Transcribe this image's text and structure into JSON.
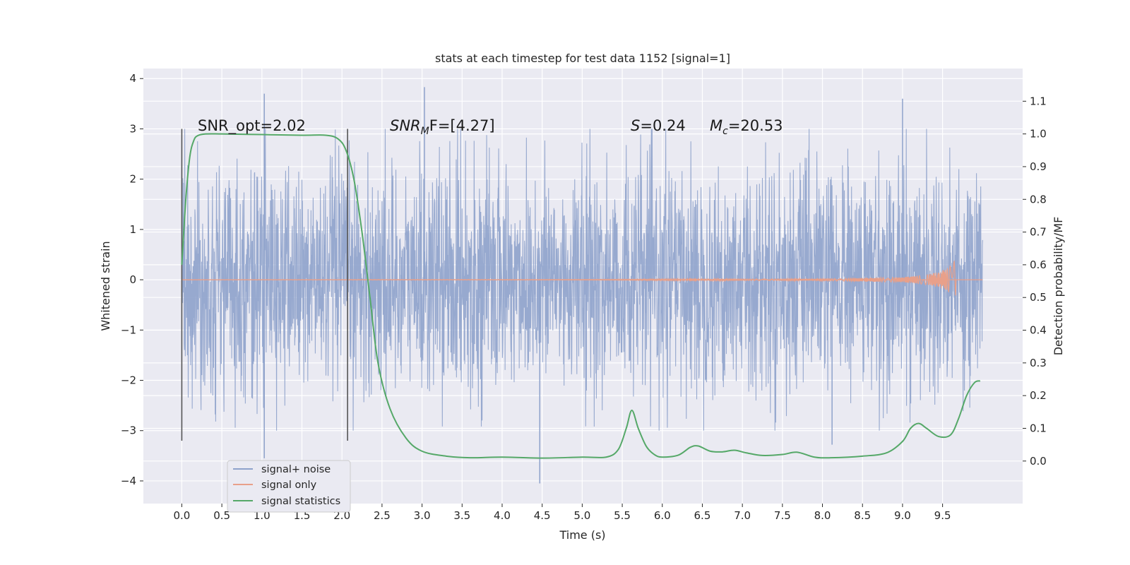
{
  "chart_data": {
    "type": "line",
    "title": "stats at each timestep for test data 1152 [signal=1]",
    "xlabel": "Time (s)",
    "ylabel_left": "Whitened strain",
    "ylabel_right": "Detection probability/MF",
    "xlim": [
      -0.48,
      10.5
    ],
    "ylim_left": [
      -4.45,
      4.2
    ],
    "ylim_right": [
      -0.13,
      1.2
    ],
    "grid": true,
    "legend_placement": "lower-left",
    "x_ticks": [
      "0.0",
      "0.5",
      "1.0",
      "1.5",
      "2.0",
      "2.5",
      "3.0",
      "3.5",
      "4.0",
      "4.5",
      "5.0",
      "5.5",
      "6.0",
      "6.5",
      "7.0",
      "7.5",
      "8.0",
      "8.5",
      "9.0",
      "9.5"
    ],
    "y_left_ticks": [
      "4",
      "3",
      "2",
      "1",
      "0",
      "−1",
      "−2",
      "−3",
      "−4"
    ],
    "y_right_ticks": [
      "1.1",
      "1.0",
      "0.9",
      "0.8",
      "0.7",
      "0.6",
      "0.5",
      "0.4",
      "0.3",
      "0.2",
      "0.1",
      "0.0"
    ],
    "annotations": {
      "snr_opt": "SNR_opt=2.02",
      "snr_mf_sym": "SNR",
      "snr_mf_sub": "M",
      "snr_mf_rest": "F=[4.27]",
      "s_sym": "S",
      "s_rest": "=0.24",
      "mc_sym": "M",
      "mc_sub": "c",
      "mc_rest": "=20.53"
    },
    "vertical_markers_x": [
      0.0,
      2.07
    ],
    "series": [
      {
        "name": "signal+ noise",
        "color": "#8ea2cb",
        "x_range": [
          0.0,
          10.0
        ],
        "amplitude_sd": 1.1,
        "notable_peaks": [
          [
            1.03,
            3.7
          ],
          [
            3.03,
            3.83
          ],
          [
            4.47,
            -4.05
          ],
          [
            1.03,
            -3.55
          ],
          [
            9.0,
            3.6
          ],
          [
            8.12,
            -3.28
          ]
        ]
      },
      {
        "name": "signal only",
        "color": "#e8a08a",
        "x": [
          0.0,
          5.0,
          8.0,
          9.0,
          9.3,
          9.5,
          9.6,
          9.66,
          9.67
        ],
        "envelope": [
          0.002,
          0.008,
          0.02,
          0.05,
          0.1,
          0.18,
          0.28,
          0.4,
          0.0
        ]
      },
      {
        "name": "signal statistics",
        "color": "#55a868",
        "x": [
          0.0,
          0.05,
          0.1,
          0.15,
          0.2,
          0.3,
          0.5,
          1.0,
          1.5,
          1.8,
          1.95,
          2.05,
          2.15,
          2.25,
          2.35,
          2.45,
          2.6,
          2.8,
          3.0,
          3.3,
          3.6,
          4.0,
          4.5,
          5.0,
          5.3,
          5.45,
          5.55,
          5.62,
          5.7,
          5.8,
          5.9,
          6.0,
          6.2,
          6.35,
          6.45,
          6.6,
          6.75,
          6.9,
          7.05,
          7.25,
          7.5,
          7.68,
          7.9,
          8.1,
          8.5,
          8.8,
          9.0,
          9.1,
          9.2,
          9.3,
          9.45,
          9.6,
          9.7,
          9.8,
          9.9,
          9.97
        ],
        "y": [
          0.6,
          0.8,
          0.93,
          0.98,
          0.995,
          1.0,
          1.0,
          0.998,
          0.996,
          0.996,
          0.985,
          0.95,
          0.86,
          0.7,
          0.5,
          0.3,
          0.16,
          0.07,
          0.03,
          0.015,
          0.01,
          0.012,
          0.009,
          0.012,
          0.012,
          0.035,
          0.1,
          0.155,
          0.1,
          0.045,
          0.02,
          0.012,
          0.018,
          0.042,
          0.046,
          0.03,
          0.028,
          0.033,
          0.025,
          0.017,
          0.02,
          0.027,
          0.012,
          0.01,
          0.015,
          0.025,
          0.06,
          0.1,
          0.115,
          0.1,
          0.075,
          0.08,
          0.13,
          0.2,
          0.24,
          0.245
        ]
      }
    ]
  }
}
